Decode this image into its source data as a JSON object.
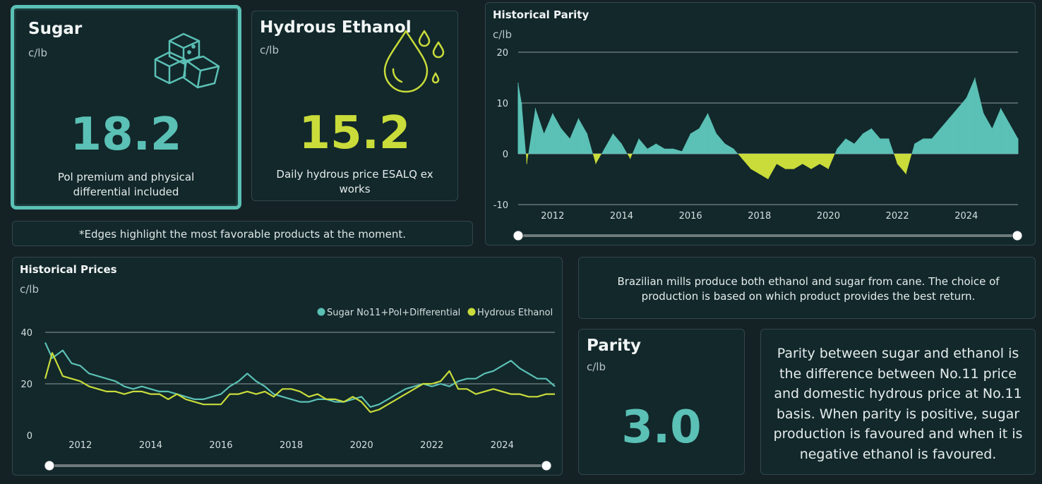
{
  "colors": {
    "teal": "#5bc0b5",
    "yellow": "#c9dc3a",
    "grid": "#9aa6a8"
  },
  "sugar": {
    "title": "Sugar",
    "unit": "c/lb",
    "value": "18.2",
    "desc": "Pol premium and physical differential included",
    "icon": "sugar-cubes-icon",
    "highlighted": true
  },
  "ethanol": {
    "title": "Hydrous Ethanol",
    "unit": "c/lb",
    "value": "15.2",
    "desc": "Daily hydrous price ESALQ ex works",
    "icon": "droplets-icon"
  },
  "edges_note": "*Edges highlight the most favorable products at the moment.",
  "info": "Brazilian mills produce both ethanol and sugar from cane. The choice of production is based on which product provides the best return.",
  "parity_kpi": {
    "title": "Parity",
    "unit": "c/lb",
    "value": "3.0"
  },
  "parity_explanation": "Parity between sugar and ethanol is the difference between No.11 price and domestic hydrous price at No.11 basis. When parity is positive, sugar production is favoured and when it is negative ethanol is favoured.",
  "chart_data": [
    {
      "id": "historical-parity",
      "type": "area",
      "title": "Historical Parity",
      "ylabel": "c/lb",
      "ylim": [
        -10,
        20
      ],
      "yticks": [
        "20",
        "10",
        "0",
        "-10"
      ],
      "xticks": [
        "2012",
        "2014",
        "2016",
        "2018",
        "2020",
        "2022",
        "2024"
      ],
      "xlim": [
        2011.0,
        2025.5
      ],
      "x": [
        2011.0,
        2011.1,
        2011.25,
        2011.5,
        2011.75,
        2012.0,
        2012.25,
        2012.5,
        2012.75,
        2013.0,
        2013.25,
        2013.5,
        2013.75,
        2014.0,
        2014.25,
        2014.5,
        2014.75,
        2015.0,
        2015.25,
        2015.5,
        2015.75,
        2016.0,
        2016.25,
        2016.5,
        2016.75,
        2017.0,
        2017.25,
        2017.5,
        2017.75,
        2018.0,
        2018.25,
        2018.5,
        2018.75,
        2019.0,
        2019.25,
        2019.5,
        2019.75,
        2020.0,
        2020.25,
        2020.5,
        2020.75,
        2021.0,
        2021.25,
        2021.5,
        2021.75,
        2022.0,
        2022.25,
        2022.5,
        2022.75,
        2023.0,
        2023.25,
        2023.5,
        2023.75,
        2024.0,
        2024.25,
        2024.5,
        2024.75,
        2025.0,
        2025.25,
        2025.5
      ],
      "values": [
        14,
        10,
        -2,
        9,
        4,
        8,
        5,
        3,
        7,
        4,
        -2,
        1,
        4,
        2,
        -1,
        3,
        1,
        2,
        1,
        1,
        0.5,
        4,
        5,
        8,
        4,
        2,
        1,
        -1,
        -3,
        -4,
        -5,
        -2,
        -3,
        -3,
        -2,
        -3,
        -2,
        -3,
        1,
        3,
        2,
        4,
        5,
        3,
        3,
        -2,
        -4,
        2,
        3,
        3,
        5,
        7,
        9,
        11,
        15,
        8,
        5,
        9,
        6,
        3
      ]
    },
    {
      "id": "historical-prices",
      "type": "line",
      "title": "Historical Prices",
      "ylabel": "c/lb",
      "ylim": [
        0,
        40
      ],
      "yticks": [
        "40",
        "20",
        "0"
      ],
      "xticks": [
        "2012",
        "2014",
        "2016",
        "2018",
        "2020",
        "2022",
        "2024"
      ],
      "xlim": [
        2011.0,
        2025.5
      ],
      "legend": "top-right",
      "x": [
        2011.0,
        2011.2,
        2011.5,
        2011.75,
        2012.0,
        2012.25,
        2012.5,
        2012.75,
        2013.0,
        2013.25,
        2013.5,
        2013.75,
        2014.0,
        2014.25,
        2014.5,
        2014.75,
        2015.0,
        2015.25,
        2015.5,
        2015.75,
        2016.0,
        2016.25,
        2016.5,
        2016.75,
        2017.0,
        2017.25,
        2017.5,
        2017.75,
        2018.0,
        2018.25,
        2018.5,
        2018.75,
        2019.0,
        2019.25,
        2019.5,
        2019.75,
        2020.0,
        2020.25,
        2020.5,
        2020.75,
        2021.0,
        2021.25,
        2021.5,
        2021.75,
        2022.0,
        2022.25,
        2022.5,
        2022.75,
        2023.0,
        2023.25,
        2023.5,
        2023.75,
        2024.0,
        2024.25,
        2024.5,
        2024.75,
        2025.0,
        2025.25,
        2025.5
      ],
      "series": [
        {
          "name": "Sugar No11+Pol+Differential",
          "color": "#5bc0b5",
          "values": [
            36,
            30,
            33,
            28,
            27,
            24,
            23,
            22,
            21,
            19,
            18,
            19,
            18,
            17,
            17,
            16,
            15,
            14,
            14,
            15,
            16,
            19,
            21,
            24,
            21,
            19,
            16,
            15,
            14,
            13,
            13,
            14,
            14,
            13,
            13,
            14,
            15,
            11,
            12,
            14,
            16,
            18,
            19,
            20,
            19,
            20,
            19,
            21,
            22,
            22,
            24,
            25,
            27,
            29,
            26,
            24,
            22,
            22,
            19
          ]
        },
        {
          "name": "Hydrous Ethanol",
          "color": "#c9dc3a",
          "values": [
            22,
            32,
            23,
            22,
            21,
            19,
            18,
            17,
            17,
            16,
            17,
            17,
            16,
            16,
            14,
            16,
            14,
            13,
            12,
            12,
            12,
            16,
            16,
            17,
            16,
            17,
            15,
            18,
            18,
            17,
            15,
            16,
            14,
            14,
            13,
            15,
            13,
            9,
            10,
            12,
            14,
            16,
            18,
            20,
            20,
            21,
            25,
            18,
            18,
            16,
            17,
            18,
            17,
            16,
            16,
            15,
            15,
            16,
            16
          ]
        }
      ]
    }
  ]
}
